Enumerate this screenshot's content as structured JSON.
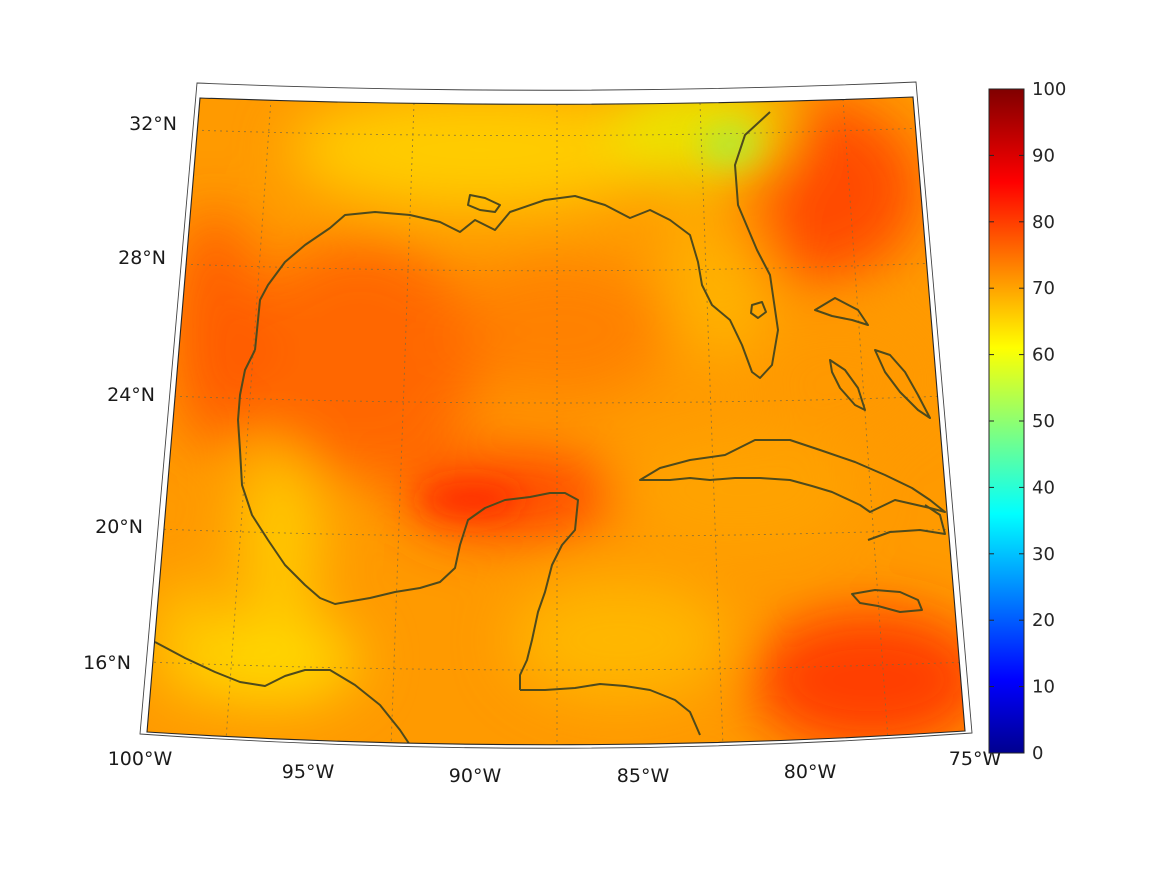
{
  "map": {
    "projection": "conic",
    "lon_range": [
      -100,
      -75
    ],
    "lat_range": [
      14,
      33
    ],
    "lon_ticks": [
      {
        "value": -100,
        "label": "100°W"
      },
      {
        "value": -95,
        "label": "95°W"
      },
      {
        "value": -90,
        "label": "90°W"
      },
      {
        "value": -85,
        "label": "85°W"
      },
      {
        "value": -80,
        "label": "80°W"
      },
      {
        "value": -75,
        "label": "75°W"
      }
    ],
    "lat_ticks": [
      {
        "value": 16,
        "label": "16°N"
      },
      {
        "value": 20,
        "label": "20°N"
      },
      {
        "value": 24,
        "label": "24°N"
      },
      {
        "value": 28,
        "label": "28°N"
      },
      {
        "value": 32,
        "label": "32°N"
      }
    ],
    "graticule": "dotted",
    "coastline_color": "#4e4a1c",
    "field_colormap": "jet",
    "field_dominant_range": [
      62,
      88
    ]
  },
  "colorbar": {
    "min": 0,
    "max": 100,
    "ticks": [
      {
        "value": 0,
        "label": "0"
      },
      {
        "value": 10,
        "label": "10"
      },
      {
        "value": 20,
        "label": "20"
      },
      {
        "value": 30,
        "label": "30"
      },
      {
        "value": 40,
        "label": "40"
      },
      {
        "value": 50,
        "label": "50"
      },
      {
        "value": 60,
        "label": "60"
      },
      {
        "value": 70,
        "label": "70"
      },
      {
        "value": 80,
        "label": "80"
      },
      {
        "value": 90,
        "label": "90"
      },
      {
        "value": 100,
        "label": "100"
      }
    ],
    "colormap": "jet"
  }
}
